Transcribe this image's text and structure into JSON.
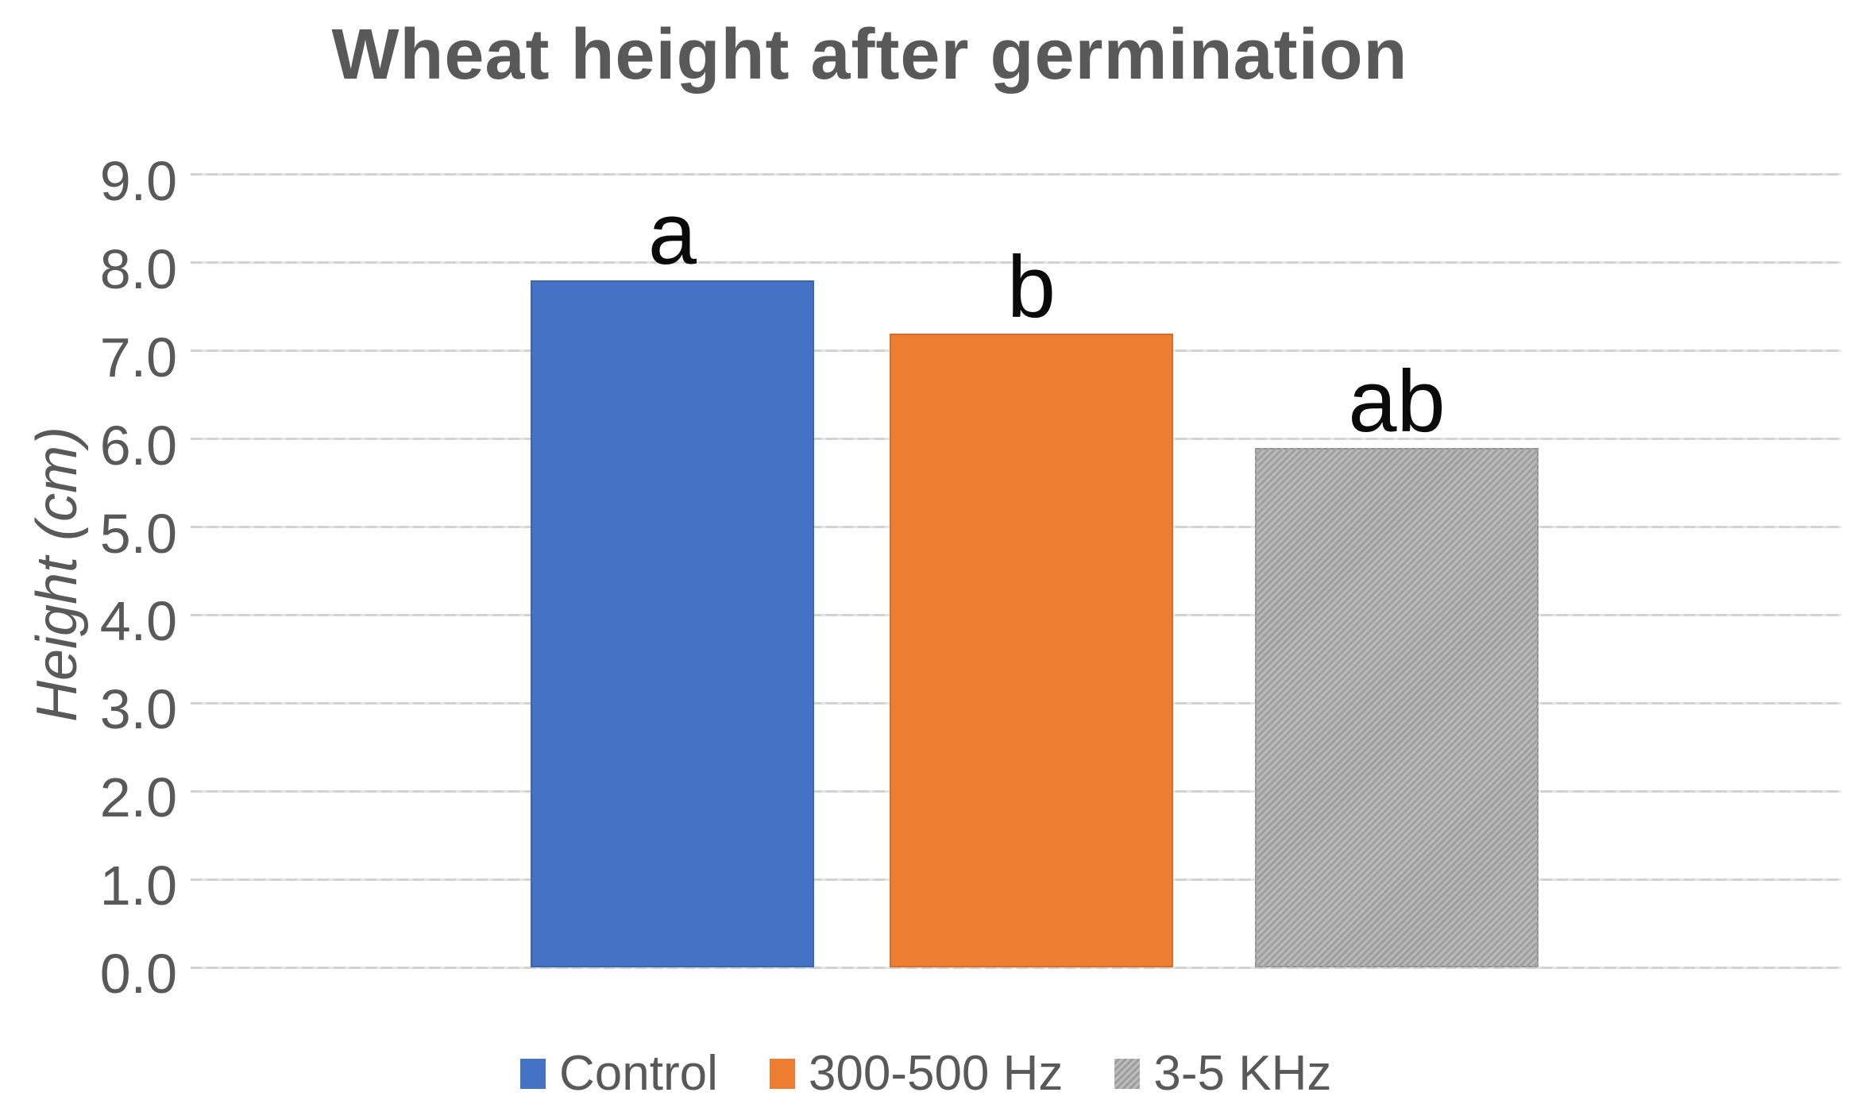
{
  "chart_data": {
    "type": "bar",
    "title": "Wheat height after germination",
    "xlabel": "",
    "ylabel": "Height (cm)",
    "categories": [
      "Control",
      "300-500 Hz",
      "3-5 KHz"
    ],
    "values": [
      7.8,
      7.2,
      5.9
    ],
    "significance_labels": [
      "a",
      "b",
      "ab"
    ],
    "bar_colors": [
      "#4472C4",
      "#ED7D31",
      "#ABABAB"
    ],
    "bar_patterns": [
      "solid",
      "solid",
      "hatch"
    ],
    "ylim": [
      0,
      9
    ],
    "ytick_labels": [
      "0.0",
      "1.0",
      "2.0",
      "3.0",
      "4.0",
      "5.0",
      "6.0",
      "7.0",
      "8.0",
      "9.0"
    ],
    "grid": true,
    "legend_position": "bottom",
    "legend": [
      {
        "label": "Control",
        "color": "#4472C4",
        "pattern": "solid"
      },
      {
        "label": "300-500 Hz",
        "color": "#ED7D31",
        "pattern": "solid"
      },
      {
        "label": "3-5 KHz",
        "color": "#ABABAB",
        "pattern": "hatch"
      }
    ]
  },
  "colors": {
    "background": "#FFFFFF",
    "title_text": "#595959",
    "axis_text": "#595959",
    "gridline": "#D9D9D9",
    "annotation_text": "#000000"
  }
}
